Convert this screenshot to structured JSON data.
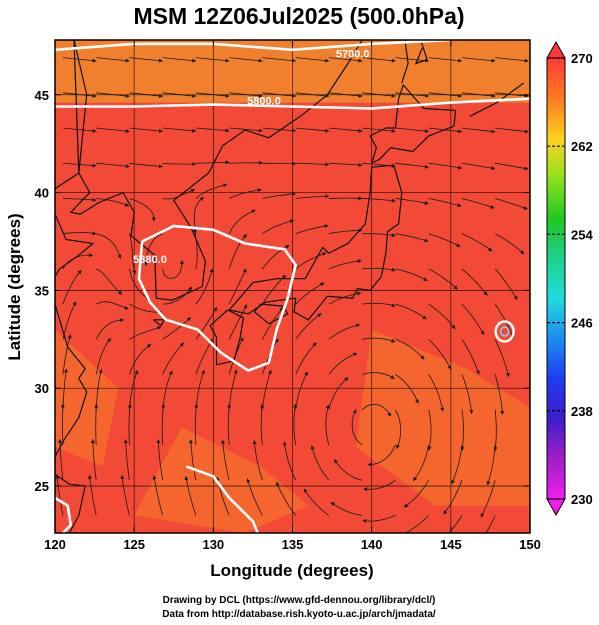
{
  "title": "MSM 12Z06Jul2025 (500.0hPa)",
  "credits": {
    "line1": "Drawing by DCL (https://www.gfd-dennou.org/library/dcl/)",
    "line2": "Data from http://database.rish.kyoto-u.ac.jp/arch/jmadata/"
  },
  "map": {
    "xlabel": "Longitude (degrees)",
    "ylabel": "Latitude (degrees)",
    "lon_range": [
      120,
      150
    ],
    "lat_range": [
      22.6,
      47.8
    ],
    "lon_ticks": [
      120,
      125,
      130,
      135,
      140,
      145,
      150
    ],
    "lat_ticks": [
      25,
      30,
      35,
      40,
      45
    ],
    "field_color": "#f24a36",
    "warm_color": "#f57a2a",
    "north_color": "#f08a2c",
    "contour_color": "#ffffff",
    "contour_labels": [
      {
        "text": "5700.0",
        "lon": 138.8,
        "lat": 46.9
      },
      {
        "text": "5800.0",
        "lon": 133.2,
        "lat": 44.5
      },
      {
        "text": "5880.0",
        "lon": 126.0,
        "lat": 36.4
      }
    ]
  },
  "colorbar": {
    "min": 230,
    "max": 270,
    "ticks": [
      270,
      262,
      254,
      246,
      238,
      230
    ],
    "colors": [
      "#ff3a3a",
      "#ff7a1e",
      "#ffd21e",
      "#8ee11e",
      "#1ec81e",
      "#1ed28c",
      "#1edcdc",
      "#1e8cf0",
      "#1e3cf0",
      "#3c1ec8",
      "#a01ec8",
      "#f01ef0"
    ]
  }
}
